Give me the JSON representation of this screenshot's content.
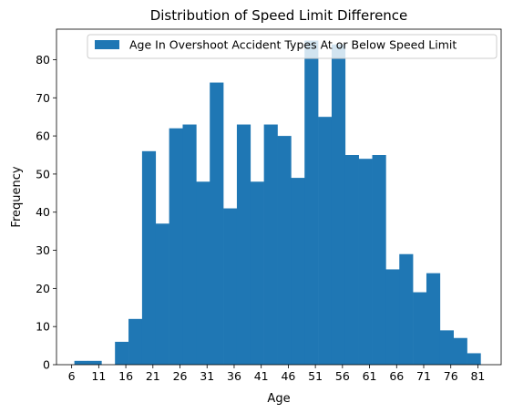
{
  "chart_data": {
    "type": "bar",
    "title": "Distribution of Speed Limit Difference",
    "xlabel": "Age",
    "ylabel": "Frequency",
    "legend": {
      "label": "Age In Overshoot Accident Types At or Below Speed Limit",
      "placement": "top-right"
    },
    "bar_color": "#1f77b4",
    "bin_width": 2.5,
    "bins": [
      {
        "start": 6.5,
        "value": 1
      },
      {
        "start": 9.0,
        "value": 1
      },
      {
        "start": 11.5,
        "value": 0
      },
      {
        "start": 14.0,
        "value": 6
      },
      {
        "start": 16.5,
        "value": 12
      },
      {
        "start": 19.0,
        "value": 56
      },
      {
        "start": 21.5,
        "value": 37
      },
      {
        "start": 24.0,
        "value": 62
      },
      {
        "start": 26.5,
        "value": 63
      },
      {
        "start": 29.0,
        "value": 48
      },
      {
        "start": 31.5,
        "value": 74
      },
      {
        "start": 34.0,
        "value": 41
      },
      {
        "start": 36.5,
        "value": 63
      },
      {
        "start": 39.0,
        "value": 48
      },
      {
        "start": 41.5,
        "value": 63
      },
      {
        "start": 44.0,
        "value": 60
      },
      {
        "start": 46.5,
        "value": 49
      },
      {
        "start": 49.0,
        "value": 85
      },
      {
        "start": 51.5,
        "value": 65
      },
      {
        "start": 54.0,
        "value": 84
      },
      {
        "start": 56.5,
        "value": 55
      },
      {
        "start": 59.0,
        "value": 54
      },
      {
        "start": 61.5,
        "value": 55
      },
      {
        "start": 64.0,
        "value": 25
      },
      {
        "start": 66.5,
        "value": 29
      },
      {
        "start": 69.0,
        "value": 19
      },
      {
        "start": 71.5,
        "value": 24
      },
      {
        "start": 74.0,
        "value": 9
      },
      {
        "start": 76.5,
        "value": 7
      },
      {
        "start": 79.0,
        "value": 3
      }
    ],
    "xticks": [
      6,
      11,
      16,
      21,
      26,
      31,
      36,
      41,
      46,
      51,
      56,
      61,
      66,
      71,
      76,
      81
    ],
    "yticks": [
      0,
      10,
      20,
      30,
      40,
      50,
      60,
      70,
      80
    ],
    "xlim": [
      3.2,
      85.3
    ],
    "ylim": [
      0,
      88
    ],
    "grid": false
  }
}
